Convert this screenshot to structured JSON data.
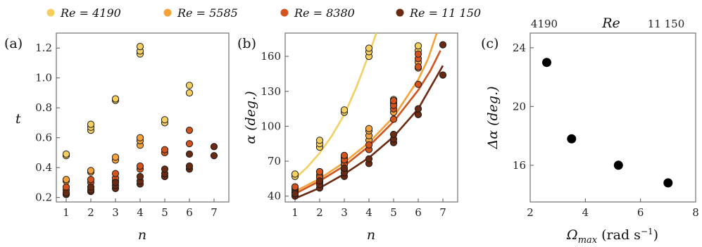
{
  "legend": [
    {
      "label": "Re = 4190",
      "color": "#f5cf5f"
    },
    {
      "label": "Re = 5585",
      "color": "#f5a23a"
    },
    {
      "label": "Re = 8380",
      "color": "#d2541c"
    },
    {
      "label": "Re = 11 150",
      "color": "#6a2a12"
    }
  ],
  "chart_data": [
    {
      "type": "scatter",
      "panel_label": "(a)",
      "xlabel": "n",
      "ylabel": "t",
      "xlim": [
        0.6,
        7.6
      ],
      "ylim": [
        0.17,
        1.3
      ],
      "xticks": [
        1,
        2,
        3,
        4,
        5,
        6,
        7
      ],
      "yticks": [
        0.2,
        0.4,
        0.6,
        0.8,
        1.0,
        1.2
      ],
      "ytick_labels": [
        "0.2",
        "0.4",
        "0.6",
        "0.8",
        "1.0",
        "1.2"
      ],
      "series": [
        {
          "name": "Re = 4190",
          "color": "#f5cf5f",
          "points": [
            [
              1,
              0.48
            ],
            [
              1,
              0.49
            ],
            [
              2,
              0.65
            ],
            [
              2,
              0.67
            ],
            [
              2,
              0.69
            ],
            [
              3,
              0.85
            ],
            [
              3,
              0.86
            ],
            [
              4,
              1.16
            ],
            [
              4,
              1.18
            ],
            [
              4,
              1.21
            ],
            [
              5,
              0.7
            ],
            [
              5,
              0.72
            ],
            [
              6,
              0.9
            ],
            [
              6,
              0.95
            ]
          ]
        },
        {
          "name": "Re = 5585",
          "color": "#f5a23a",
          "points": [
            [
              1,
              0.31
            ],
            [
              1,
              0.32
            ],
            [
              2,
              0.37
            ],
            [
              2,
              0.38
            ],
            [
              3,
              0.45
            ],
            [
              3,
              0.47
            ],
            [
              4,
              0.55
            ],
            [
              4,
              0.58
            ],
            [
              4,
              0.6
            ]
          ]
        },
        {
          "name": "Re = 8380",
          "color": "#d2541c",
          "points": [
            [
              1,
              0.25
            ],
            [
              1,
              0.27
            ],
            [
              2,
              0.27
            ],
            [
              2,
              0.3
            ],
            [
              2,
              0.32
            ],
            [
              3,
              0.31
            ],
            [
              3,
              0.33
            ],
            [
              3,
              0.36
            ],
            [
              4,
              0.39
            ],
            [
              4,
              0.41
            ],
            [
              5,
              0.5
            ],
            [
              5,
              0.52
            ],
            [
              6,
              0.56
            ],
            [
              6,
              0.65
            ]
          ]
        },
        {
          "name": "Re = 11 150",
          "color": "#6a2a12",
          "points": [
            [
              1,
              0.22
            ],
            [
              1,
              0.23
            ],
            [
              2,
              0.24
            ],
            [
              2,
              0.25
            ],
            [
              2,
              0.27
            ],
            [
              3,
              0.26
            ],
            [
              3,
              0.28
            ],
            [
              3,
              0.3
            ],
            [
              4,
              0.29
            ],
            [
              4,
              0.31
            ],
            [
              4,
              0.34
            ],
            [
              5,
              0.34
            ],
            [
              5,
              0.36
            ],
            [
              5,
              0.39
            ],
            [
              6,
              0.39
            ],
            [
              6,
              0.41
            ],
            [
              6,
              0.49
            ],
            [
              7,
              0.48
            ],
            [
              7,
              0.54
            ]
          ]
        }
      ]
    },
    {
      "type": "scatter",
      "panel_label": "(b)",
      "xlabel": "n",
      "ylabel": "α (deg.)",
      "xlim": [
        0.6,
        7.6
      ],
      "ylim": [
        35,
        180
      ],
      "xticks": [
        1,
        2,
        3,
        4,
        5,
        6,
        7
      ],
      "yticks": [
        40,
        70,
        100,
        130,
        160
      ],
      "series": [
        {
          "name": "Re = 4190",
          "color": "#f5cf5f",
          "points": [
            [
              1,
              57
            ],
            [
              1,
              59
            ],
            [
              2,
              82
            ],
            [
              2,
              85
            ],
            [
              2,
              88
            ],
            [
              3,
              112
            ],
            [
              3,
              114
            ],
            [
              4,
              160
            ],
            [
              4,
              164
            ],
            [
              4,
              167
            ],
            [
              5,
              120
            ],
            [
              5,
              123
            ],
            [
              6,
              165
            ],
            [
              6,
              169
            ]
          ],
          "fit": [
            [
              1,
              55
            ],
            [
              1.5,
              65
            ],
            [
              2,
              77
            ],
            [
              2.5,
              92
            ],
            [
              3,
              110
            ],
            [
              3.5,
              134
            ],
            [
              4,
              162
            ],
            [
              4.3,
              180
            ]
          ]
        },
        {
          "name": "Re = 5585",
          "color": "#f5a23a",
          "points": [
            [
              1,
              45
            ],
            [
              1,
              47
            ],
            [
              2,
              58
            ],
            [
              2,
              61
            ],
            [
              3,
              70
            ],
            [
              3,
              73
            ],
            [
              4,
              88
            ],
            [
              4,
              92
            ],
            [
              4,
              96
            ],
            [
              4,
              98
            ],
            [
              5,
              112
            ],
            [
              5,
              118
            ],
            [
              6,
              150
            ],
            [
              6,
              155
            ]
          ],
          "fit": [
            [
              1,
              44
            ],
            [
              2,
              55
            ],
            [
              3,
              69
            ],
            [
              4,
              86
            ],
            [
              5,
              108
            ],
            [
              6,
              140
            ],
            [
              6.4,
              158
            ],
            [
              6.75,
              180
            ]
          ]
        },
        {
          "name": "Re = 8380",
          "color": "#d2541c",
          "points": [
            [
              1,
              43
            ],
            [
              1,
              48
            ],
            [
              2,
              52
            ],
            [
              2,
              56
            ],
            [
              2,
              61
            ],
            [
              3,
              63
            ],
            [
              3,
              67
            ],
            [
              3,
              71
            ],
            [
              3,
              75
            ],
            [
              4,
              80
            ],
            [
              4,
              84
            ],
            [
              5,
              106
            ],
            [
              5,
              115
            ],
            [
              5,
              118
            ],
            [
              5,
              122
            ],
            [
              6,
              136
            ],
            [
              6,
              151
            ],
            [
              6,
              158
            ],
            [
              6,
              162
            ]
          ],
          "fit": [
            [
              1,
              42
            ],
            [
              2,
              53
            ],
            [
              3,
              66
            ],
            [
              4,
              83
            ],
            [
              5,
              104
            ],
            [
              6,
              131
            ],
            [
              6.5,
              148
            ],
            [
              6.9,
              165
            ]
          ]
        },
        {
          "name": "Re = 11 150",
          "color": "#6a2a12",
          "points": [
            [
              1,
              40
            ],
            [
              1,
              42
            ],
            [
              2,
              47
            ],
            [
              2,
              50
            ],
            [
              2,
              53
            ],
            [
              3,
              57
            ],
            [
              3,
              60
            ],
            [
              3,
              64
            ],
            [
              4,
              68
            ],
            [
              4,
              72
            ],
            [
              5,
              86
            ],
            [
              5,
              89
            ],
            [
              5,
              93
            ],
            [
              6,
              110
            ],
            [
              6,
              115
            ],
            [
              7,
              144
            ],
            [
              7,
              170
            ]
          ],
          "fit": [
            [
              1,
              38
            ],
            [
              2,
              47
            ],
            [
              3,
              59
            ],
            [
              4,
              73
            ],
            [
              5,
              91
            ],
            [
              6,
              115
            ],
            [
              7,
              152
            ]
          ]
        }
      ]
    },
    {
      "type": "scatter",
      "panel_label": "(c)",
      "xlabel": "Ω_max (rad s−1)",
      "ylabel": "Δα (deg.)",
      "top_axis_label": "Re",
      "top_ticks": [
        "4190",
        "11 150"
      ],
      "xlim": [
        2,
        8
      ],
      "ylim": [
        13.5,
        25
      ],
      "xticks": [
        2,
        4,
        6,
        8
      ],
      "yticks": [
        16,
        20,
        24
      ],
      "series": [
        {
          "points": [
            [
              2.6,
              23.0
            ],
            [
              3.5,
              17.8
            ],
            [
              5.2,
              16.0
            ],
            [
              7.0,
              14.8
            ]
          ],
          "color": "#000000"
        }
      ]
    }
  ]
}
